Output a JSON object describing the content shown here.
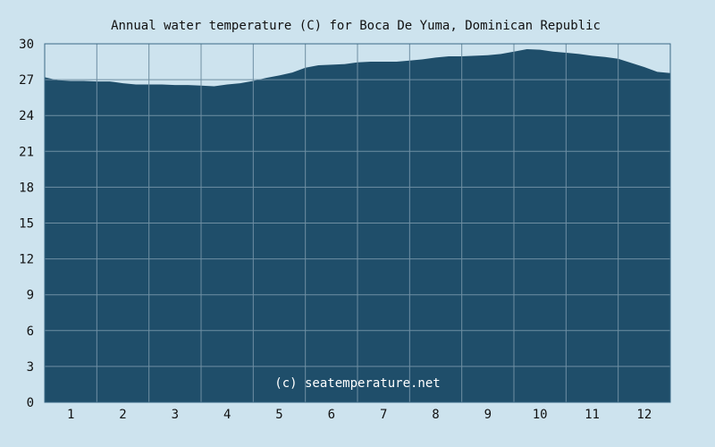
{
  "chart_data": {
    "type": "area",
    "title": "Annual water temperature (C) for Boca De Yuma, Dominican Republic",
    "xlabel": "",
    "ylabel": "",
    "x_ticks": [
      "1",
      "2",
      "3",
      "4",
      "5",
      "6",
      "7",
      "8",
      "9",
      "10",
      "11",
      "12"
    ],
    "y_ticks": [
      "0",
      "3",
      "6",
      "9",
      "12",
      "15",
      "18",
      "21",
      "24",
      "27",
      "30"
    ],
    "xlim": [
      0.5,
      12.5
    ],
    "ylim": [
      0,
      30
    ],
    "grid": true,
    "series": [
      {
        "x": [
          0.5,
          0.75,
          1.0,
          1.25,
          1.5,
          1.75,
          2.0,
          2.25,
          2.5,
          2.75,
          3.0,
          3.25,
          3.5,
          3.75,
          4.0,
          4.25,
          4.5,
          4.75,
          5.0,
          5.25,
          5.5,
          5.75,
          6.0,
          6.25,
          6.5,
          6.75,
          7.0,
          7.25,
          7.5,
          7.75,
          8.0,
          8.25,
          8.5,
          8.75,
          9.0,
          9.25,
          9.5,
          9.75,
          10.0,
          10.25,
          10.5,
          10.75,
          11.0,
          11.25,
          11.5,
          11.75,
          12.0,
          12.25,
          12.5
        ],
        "values": [
          27.2,
          26.95,
          26.9,
          26.9,
          26.85,
          26.85,
          26.7,
          26.6,
          26.6,
          26.6,
          26.55,
          26.55,
          26.5,
          26.45,
          26.6,
          26.7,
          26.9,
          27.15,
          27.35,
          27.6,
          28.0,
          28.2,
          28.25,
          28.3,
          28.45,
          28.5,
          28.5,
          28.5,
          28.6,
          28.7,
          28.85,
          28.95,
          28.95,
          29.0,
          29.05,
          29.15,
          29.35,
          29.55,
          29.5,
          29.35,
          29.25,
          29.15,
          29.0,
          28.9,
          28.75,
          28.4,
          28.05,
          27.65,
          27.55
        ]
      }
    ],
    "annotation": "(c) seatemperature.net",
    "colors": {
      "background": "#cde3ee",
      "plot_fill": "#1f4e6a",
      "grid": "#6f8fa3",
      "axis": "#3a6a86",
      "text": "#111111",
      "annotation_text": "#ffffff"
    }
  }
}
